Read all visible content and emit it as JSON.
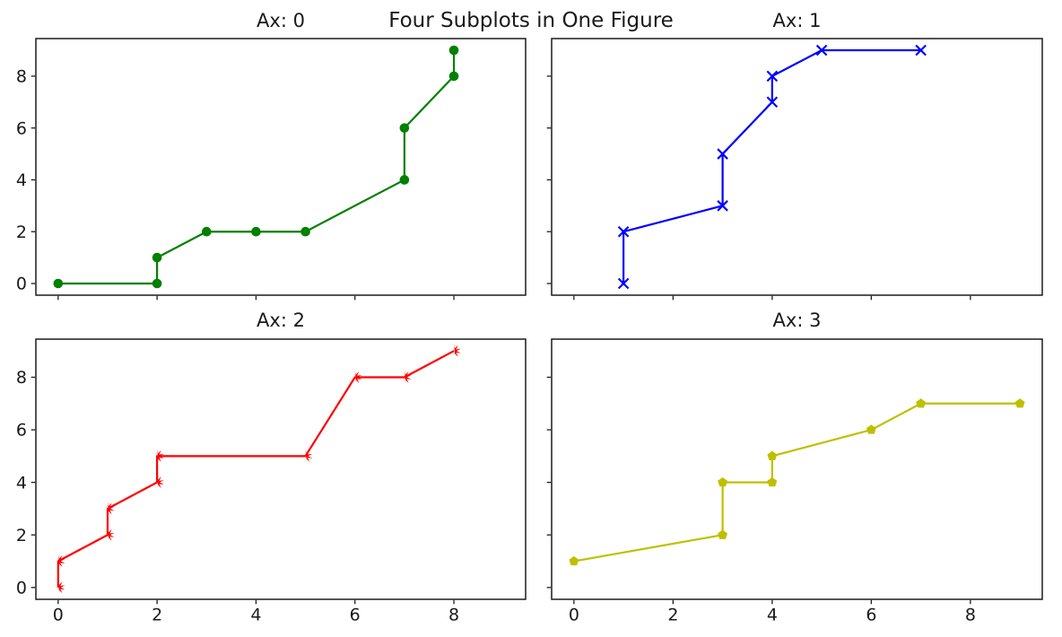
{
  "figure": {
    "suptitle": "Four Subplots in One Figure",
    "background": "#ffffff",
    "text_color": "#1a1a1a",
    "spine_color": "#1c1c1c"
  },
  "chart_data": [
    {
      "type": "line",
      "title": "Ax: 0",
      "color": "#008000",
      "marker": "circle",
      "x": [
        0,
        2,
        2,
        3,
        4,
        5,
        7,
        7,
        8,
        8
      ],
      "y": [
        0,
        0,
        1,
        2,
        2,
        2,
        4,
        6,
        8,
        9
      ],
      "xlim": [
        -0.45,
        9.45
      ],
      "ylim": [
        -0.45,
        9.45
      ],
      "xticks": [
        0,
        2,
        4,
        6,
        8
      ],
      "yticks": [
        0,
        2,
        4,
        6,
        8
      ],
      "show_xticklabels": false,
      "show_yticklabels": true,
      "grid": false,
      "legend": null
    },
    {
      "type": "line",
      "title": "Ax: 1",
      "color": "#0000ff",
      "marker": "x",
      "x": [
        1,
        1,
        3,
        3,
        4,
        4,
        5,
        7
      ],
      "y": [
        0,
        2,
        3,
        5,
        7,
        8,
        9,
        9
      ],
      "xlim": [
        -0.45,
        9.45
      ],
      "ylim": [
        -0.45,
        9.45
      ],
      "xticks": [
        0,
        2,
        4,
        6,
        8
      ],
      "yticks": [
        0,
        2,
        4,
        6,
        8
      ],
      "show_xticklabels": false,
      "show_yticklabels": false,
      "grid": false,
      "legend": null
    },
    {
      "type": "line",
      "title": "Ax: 2",
      "color": "#ff0000",
      "marker": "star",
      "x": [
        0,
        0,
        1,
        1,
        2,
        2,
        5,
        6,
        7,
        8
      ],
      "y": [
        0,
        1,
        2,
        3,
        4,
        5,
        5,
        8,
        8,
        9
      ],
      "xlim": [
        -0.45,
        9.45
      ],
      "ylim": [
        -0.45,
        9.45
      ],
      "xticks": [
        0,
        2,
        4,
        6,
        8
      ],
      "yticks": [
        0,
        2,
        4,
        6,
        8
      ],
      "show_xticklabels": true,
      "show_yticklabels": true,
      "grid": false,
      "legend": null
    },
    {
      "type": "line",
      "title": "Ax: 3",
      "color": "#bfbf00",
      "marker": "pentagon",
      "x": [
        0,
        3,
        3,
        4,
        4,
        6,
        7,
        9
      ],
      "y": [
        1,
        2,
        4,
        4,
        5,
        6,
        7,
        7
      ],
      "xlim": [
        -0.45,
        9.45
      ],
      "ylim": [
        -0.45,
        9.45
      ],
      "xticks": [
        0,
        2,
        4,
        6,
        8
      ],
      "yticks": [
        0,
        2,
        4,
        6,
        8
      ],
      "show_xticklabels": true,
      "show_yticklabels": false,
      "grid": false,
      "legend": null
    }
  ]
}
